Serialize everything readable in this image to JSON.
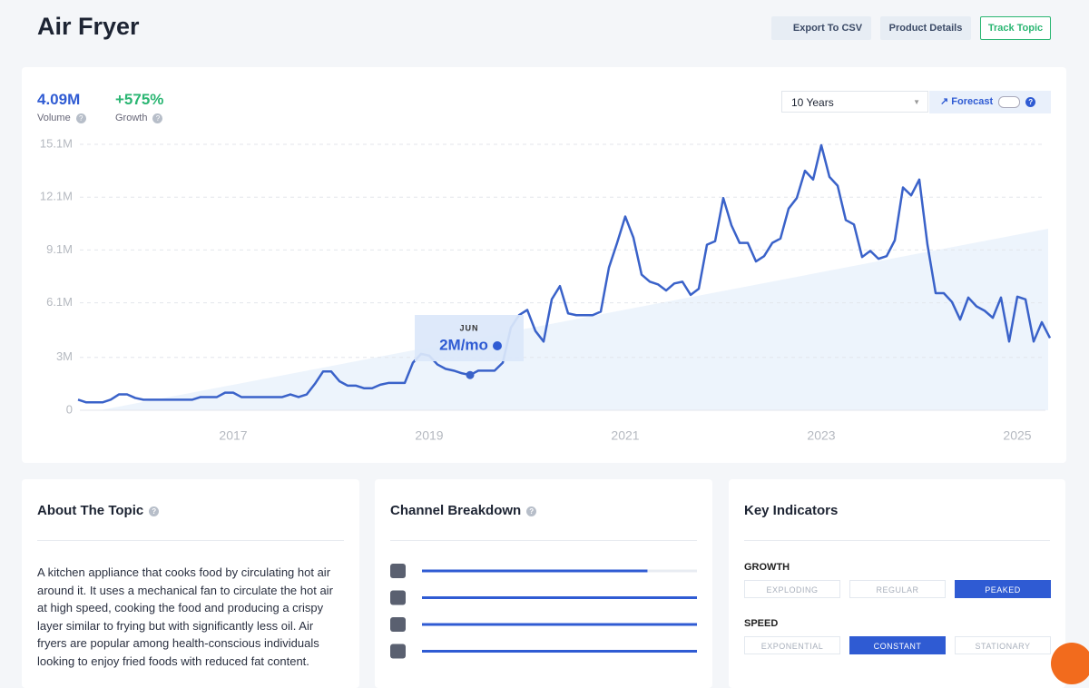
{
  "header": {
    "title": "Air Fryer",
    "buttons": [
      "Export To CSV",
      "Product Details",
      "Track Topic"
    ]
  },
  "stats": [
    {
      "value": "4.09M",
      "label": "Volume"
    },
    {
      "value": "+575%",
      "label": "Growth"
    }
  ],
  "controls": {
    "range": "10 Years",
    "forecast": "Forecast"
  },
  "chart_data": {
    "type": "line",
    "color": "#3a62c9",
    "grid": true,
    "categories": [
      null,
      null,
      null,
      null,
      null,
      null,
      null,
      null,
      null,
      null,
      null,
      null,
      null,
      null,
      null,
      null,
      null,
      null,
      null,
      "2017",
      null,
      null,
      null,
      null,
      null,
      null,
      null,
      null,
      null,
      null,
      null,
      null,
      null,
      null,
      null,
      null,
      null,
      null,
      null,
      null,
      null,
      null,
      null,
      "2019",
      null,
      null,
      null,
      null,
      null,
      null,
      null,
      null,
      null,
      null,
      null,
      null,
      null,
      null,
      null,
      null,
      null,
      null,
      null,
      null,
      null,
      null,
      null,
      "2021",
      null,
      null,
      null,
      null,
      null,
      null,
      null,
      null,
      null,
      null,
      null,
      null,
      null,
      null,
      null,
      null,
      null,
      null,
      null,
      null,
      null,
      null,
      null,
      "2023",
      null,
      null,
      null,
      null,
      null,
      null,
      null,
      null,
      null,
      null,
      null,
      null,
      null,
      null,
      null,
      null,
      null,
      null,
      null,
      null,
      null,
      null,
      null,
      "2025",
      null,
      null,
      null,
      null
    ],
    "values": [
      0.6,
      0.45,
      0.45,
      0.45,
      0.6,
      0.9,
      0.9,
      0.7,
      0.6,
      0.6,
      0.6,
      0.6,
      0.6,
      0.6,
      0.6,
      0.75,
      0.75,
      0.75,
      1.0,
      1.0,
      0.75,
      0.75,
      0.75,
      0.75,
      0.75,
      0.75,
      0.9,
      0.75,
      0.9,
      1.5,
      2.2,
      2.2,
      1.65,
      1.4,
      1.4,
      1.25,
      1.25,
      1.45,
      1.55,
      1.55,
      1.55,
      2.7,
      3.2,
      3.1,
      2.6,
      2.35,
      2.25,
      2.1,
      2.0,
      2.25,
      2.25,
      2.25,
      2.7,
      4.7,
      5.4,
      5.7,
      4.5,
      3.9,
      6.3,
      7.05,
      5.5,
      5.4,
      5.4,
      5.4,
      5.6,
      8.1,
      9.5,
      11.0,
      9.8,
      7.7,
      7.3,
      7.15,
      6.8,
      7.2,
      7.3,
      6.55,
      6.9,
      9.4,
      9.6,
      12.05,
      10.5,
      9.5,
      9.5,
      8.45,
      8.75,
      9.5,
      9.75,
      11.45,
      12.05,
      13.6,
      13.1,
      15.05,
      13.25,
      12.75,
      10.8,
      10.55,
      8.7,
      9.05,
      8.6,
      8.75,
      9.65,
      12.65,
      12.2,
      13.1,
      9.4,
      6.65,
      6.65,
      6.15,
      5.15,
      6.4,
      5.9,
      5.65,
      5.25,
      6.4,
      3.9,
      6.45,
      6.3,
      3.9,
      5.0,
      4.1
    ],
    "ylim": [
      0,
      15.1
    ],
    "yticks": [
      0,
      {
        "value": 3,
        "label": "3M"
      },
      {
        "value": 6.1,
        "label": "6.1M"
      },
      {
        "value": 9.1,
        "label": "9.1M"
      },
      {
        "value": 12.1,
        "label": "12.1M"
      },
      {
        "value": 15.1,
        "label": "15.1M"
      }
    ],
    "highlight": 48
  },
  "tooltip": {
    "month": "JUN",
    "value": "2M/mo"
  },
  "about": {
    "title": "About The Topic",
    "text": "A kitchen appliance that cooks food by circulating hot air around it. It uses a mechanical fan to circulate the hot air at high speed, cooking the food and producing a crispy layer similar to frying but with significantly less oil. Air fryers are popular among health-conscious individuals looking to enjoy fried foods with reduced fat content."
  },
  "channels": {
    "title": "Channel Breakdown",
    "values": [
      82,
      100,
      100,
      100
    ],
    "xlim": [
      0,
      100
    ]
  },
  "indicators": {
    "title": "Key Indicators",
    "groups": [
      {
        "name": "GROWTH",
        "options": [
          "EXPLODING",
          "REGULAR",
          "PEAKED"
        ],
        "selected": 2
      },
      {
        "name": "SPEED",
        "options": [
          "EXPONENTIAL",
          "CONSTANT",
          "STATIONARY"
        ],
        "selected": 1
      }
    ]
  }
}
